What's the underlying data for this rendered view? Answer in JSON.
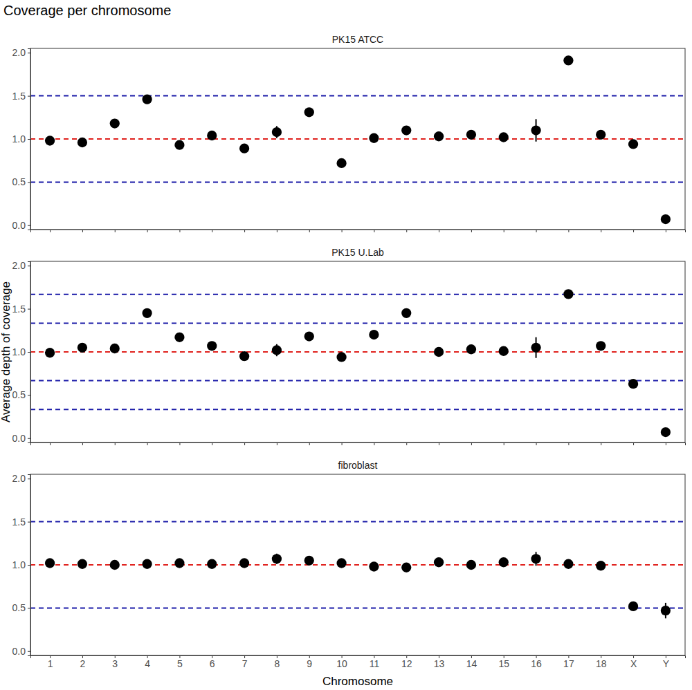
{
  "title": "Coverage per chromosome",
  "x_label": "Chromosome",
  "y_label": "Average depth of coverage",
  "chart_data": [
    {
      "type": "scatter",
      "title": "PK15 ATCC",
      "categories": [
        "1",
        "2",
        "3",
        "4",
        "5",
        "6",
        "7",
        "8",
        "9",
        "10",
        "11",
        "12",
        "13",
        "14",
        "15",
        "16",
        "17",
        "18",
        "X",
        "Y"
      ],
      "values": [
        0.98,
        0.96,
        1.18,
        1.46,
        0.93,
        1.04,
        0.89,
        1.08,
        1.31,
        0.72,
        1.01,
        1.1,
        1.03,
        1.05,
        1.02,
        1.1,
        1.91,
        1.05,
        0.94,
        0.07
      ],
      "errors": [
        0.01,
        0.01,
        0.01,
        0.01,
        0.01,
        0.01,
        0.01,
        0.07,
        0.01,
        0.01,
        0.01,
        0.01,
        0.01,
        0.01,
        0.01,
        0.13,
        0.01,
        0.01,
        0.01,
        0.01
      ],
      "hlines": [
        {
          "value": 0.5,
          "color": "#1a1aa8",
          "line_style": "dashed"
        },
        {
          "value": 1.0,
          "color": "#e0201c",
          "line_style": "dashed"
        },
        {
          "value": 1.5,
          "color": "#1a1aa8",
          "line_style": "dashed"
        }
      ],
      "color": "#000000",
      "marker": "circle",
      "ylim": [
        -0.05,
        2.05
      ],
      "yticks": [
        {
          "value": 0,
          "label": "0.0"
        },
        {
          "value": 0.5,
          "label": "0.5"
        },
        {
          "value": 1,
          "label": "1.0"
        },
        {
          "value": 1.5,
          "label": "1.5"
        },
        {
          "value": 2,
          "label": "2.0"
        }
      ],
      "grid": false,
      "tick_labels": "y"
    },
    {
      "type": "scatter",
      "title": "PK15 U.Lab",
      "categories": [
        "1",
        "2",
        "3",
        "4",
        "5",
        "6",
        "7",
        "8",
        "9",
        "10",
        "11",
        "12",
        "13",
        "14",
        "15",
        "16",
        "17",
        "18",
        "X",
        "Y"
      ],
      "values": [
        0.99,
        1.05,
        1.04,
        1.45,
        1.17,
        1.07,
        0.95,
        1.02,
        1.18,
        0.94,
        1.2,
        1.45,
        1.0,
        1.03,
        1.01,
        1.05,
        1.67,
        1.07,
        0.63,
        0.07
      ],
      "errors": [
        0.01,
        0.01,
        0.01,
        0.01,
        0.01,
        0.01,
        0.01,
        0.07,
        0.01,
        0.01,
        0.01,
        0.01,
        0.01,
        0.01,
        0.01,
        0.12,
        0.01,
        0.01,
        0.01,
        0.01
      ],
      "hlines": [
        {
          "value": 0.333,
          "color": "#1a1aa8",
          "line_style": "dashed"
        },
        {
          "value": 0.667,
          "color": "#1a1aa8",
          "line_style": "dashed"
        },
        {
          "value": 1.0,
          "color": "#e0201c",
          "line_style": "dashed"
        },
        {
          "value": 1.333,
          "color": "#1a1aa8",
          "line_style": "dashed"
        },
        {
          "value": 1.667,
          "color": "#1a1aa8",
          "line_style": "dashed"
        }
      ],
      "color": "#000000",
      "marker": "circle",
      "ylim": [
        -0.05,
        2.05
      ],
      "yticks": [
        {
          "value": 0,
          "label": "0.0"
        },
        {
          "value": 0.5,
          "label": "0.5"
        },
        {
          "value": 1,
          "label": "1.0"
        },
        {
          "value": 1.5,
          "label": "1.5"
        },
        {
          "value": 2,
          "label": "2.0"
        }
      ],
      "grid": false,
      "tick_labels": "y"
    },
    {
      "type": "scatter",
      "title": "fibroblast",
      "categories": [
        "1",
        "2",
        "3",
        "4",
        "5",
        "6",
        "7",
        "8",
        "9",
        "10",
        "11",
        "12",
        "13",
        "14",
        "15",
        "16",
        "17",
        "18",
        "X",
        "Y"
      ],
      "values": [
        1.02,
        1.01,
        1.0,
        1.01,
        1.02,
        1.01,
        1.02,
        1.07,
        1.05,
        1.02,
        0.98,
        0.97,
        1.03,
        1.0,
        1.03,
        1.07,
        1.01,
        0.99,
        0.52,
        0.47
      ],
      "errors": [
        0.01,
        0.01,
        0.01,
        0.01,
        0.01,
        0.01,
        0.01,
        0.06,
        0.01,
        0.01,
        0.01,
        0.01,
        0.01,
        0.01,
        0.01,
        0.08,
        0.01,
        0.01,
        0.03,
        0.09
      ],
      "hlines": [
        {
          "value": 0.5,
          "color": "#1a1aa8",
          "line_style": "dashed"
        },
        {
          "value": 1.0,
          "color": "#e0201c",
          "line_style": "dashed"
        },
        {
          "value": 1.5,
          "color": "#1a1aa8",
          "line_style": "dashed"
        }
      ],
      "color": "#000000",
      "marker": "circle",
      "ylim": [
        -0.05,
        2.05
      ],
      "yticks": [
        {
          "value": 0,
          "label": "0.0"
        },
        {
          "value": 0.5,
          "label": "0.5"
        },
        {
          "value": 1,
          "label": "1.0"
        },
        {
          "value": 1.5,
          "label": "1.5"
        },
        {
          "value": 2,
          "label": "2.0"
        }
      ],
      "grid": false
    }
  ]
}
